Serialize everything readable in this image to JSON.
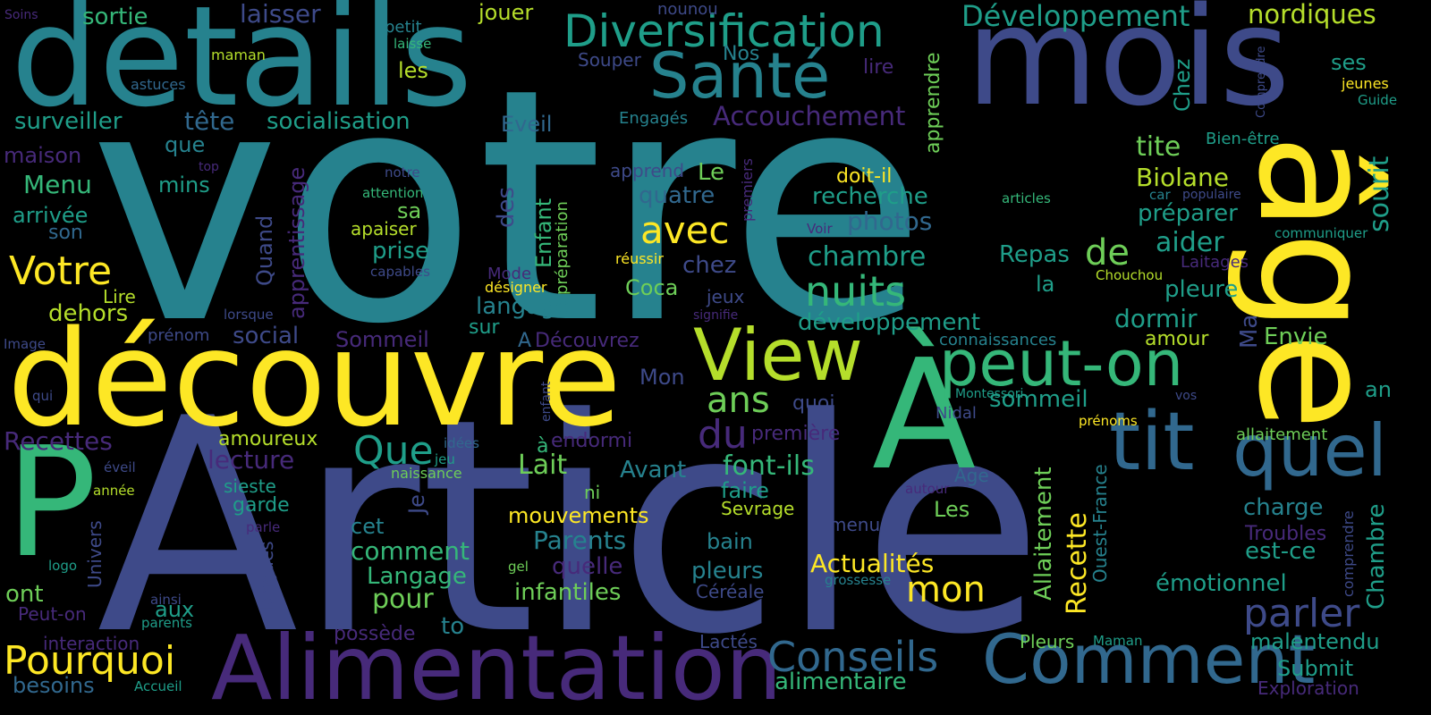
{
  "palette": {
    "background": "#000000",
    "dark_purple": "#472a7a",
    "indigo": "#3e4a89",
    "blue": "#31688e",
    "teal": "#26828e",
    "green_teal": "#1f9e89",
    "green": "#35b779",
    "light_green": "#6ece58",
    "lime": "#b5de2b",
    "yellow": "#fde725"
  },
  "words": [
    {
      "text": "votre",
      "c": "teal"
    },
    {
      "text": "Article",
      "c": "indigo"
    },
    {
      "text": "details",
      "c": "teal"
    },
    {
      "text": "mois",
      "c": "indigo"
    },
    {
      "text": "âge",
      "c": "yellow"
    },
    {
      "text": "découvre",
      "c": "yellow"
    },
    {
      "text": "P",
      "c": "green"
    },
    {
      "text": "À",
      "c": "green"
    },
    {
      "text": "View",
      "c": "lime"
    },
    {
      "text": "peut-on",
      "c": "green"
    },
    {
      "text": "Alimentation",
      "c": "dark_purple"
    },
    {
      "text": "Comment",
      "c": "blue"
    },
    {
      "text": "tit",
      "c": "blue"
    },
    {
      "text": "quel",
      "c": "blue"
    },
    {
      "text": "Santé",
      "c": "teal"
    },
    {
      "text": "Diversification",
      "c": "green_teal"
    },
    {
      "text": "Développement",
      "c": "green_teal"
    },
    {
      "text": "nordiques",
      "c": "lime"
    },
    {
      "text": "Conseils",
      "c": "blue"
    },
    {
      "text": "Pourquoi",
      "c": "yellow"
    },
    {
      "text": "nuits",
      "c": "green"
    },
    {
      "text": "avec",
      "c": "yellow"
    },
    {
      "text": "Votre",
      "c": "yellow"
    },
    {
      "text": "parler",
      "c": "indigo"
    },
    {
      "text": "du",
      "c": "dark_purple"
    },
    {
      "text": "Que",
      "c": "green_teal"
    },
    {
      "text": "ans",
      "c": "light_green"
    },
    {
      "text": "mon",
      "c": "yellow"
    },
    {
      "text": "de",
      "c": "light_green"
    },
    {
      "text": "Accouchement",
      "c": "dark_purple"
    },
    {
      "text": "Actualités",
      "c": "yellow"
    },
    {
      "text": "font-ils",
      "c": "green"
    },
    {
      "text": "Lait",
      "c": "light_green"
    },
    {
      "text": "Recettes",
      "c": "dark_purple"
    },
    {
      "text": "laisser",
      "c": "indigo"
    },
    {
      "text": "sortie",
      "c": "green"
    },
    {
      "text": "jouer",
      "c": "lime"
    },
    {
      "text": "nounou",
      "c": "indigo"
    },
    {
      "text": "Soins",
      "c": "dark_purple"
    },
    {
      "text": "petit",
      "c": "teal"
    },
    {
      "text": "laisse",
      "c": "green"
    },
    {
      "text": "les",
      "c": "lime"
    },
    {
      "text": "maman",
      "c": "lime"
    },
    {
      "text": "Souper",
      "c": "indigo"
    },
    {
      "text": "Nos",
      "c": "teal"
    },
    {
      "text": "lire",
      "c": "dark_purple"
    },
    {
      "text": "astuces",
      "c": "blue"
    },
    {
      "text": "surveiller",
      "c": "green_teal"
    },
    {
      "text": "tête",
      "c": "blue"
    },
    {
      "text": "socialisation",
      "c": "green_teal"
    },
    {
      "text": "Eveil",
      "c": "blue"
    },
    {
      "text": "Engagés",
      "c": "teal"
    },
    {
      "text": "Chez",
      "c": "green_teal"
    },
    {
      "text": "ses",
      "c": "green_teal"
    },
    {
      "text": "jeunes",
      "c": "yellow"
    },
    {
      "text": "Guide",
      "c": "green_teal"
    },
    {
      "text": "Comprendre",
      "c": "indigo"
    },
    {
      "text": "apprendre",
      "c": "light_green"
    },
    {
      "text": "que",
      "c": "teal"
    },
    {
      "text": "maison",
      "c": "dark_purple"
    },
    {
      "text": "top",
      "c": "dark_purple"
    },
    {
      "text": "mins",
      "c": "green_teal"
    },
    {
      "text": "Menu",
      "c": "green"
    },
    {
      "text": "arrivée",
      "c": "green_teal"
    },
    {
      "text": "son",
      "c": "blue"
    },
    {
      "text": "notre",
      "c": "indigo"
    },
    {
      "text": "attention",
      "c": "green"
    },
    {
      "text": "sa",
      "c": "light_green"
    },
    {
      "text": "apaiser",
      "c": "lime"
    },
    {
      "text": "tite",
      "c": "light_green"
    },
    {
      "text": "Biolane",
      "c": "lime"
    },
    {
      "text": "sourit",
      "c": "green_teal"
    },
    {
      "text": "Bien-être",
      "c": "green_teal"
    },
    {
      "text": "car",
      "c": "teal"
    },
    {
      "text": "populaire",
      "c": "indigo"
    },
    {
      "text": "articles",
      "c": "green"
    },
    {
      "text": "doit-il",
      "c": "yellow"
    },
    {
      "text": "recherche",
      "c": "green_teal"
    },
    {
      "text": "Le",
      "c": "light_green"
    },
    {
      "text": "quatre",
      "c": "blue"
    },
    {
      "text": "apprend",
      "c": "indigo"
    },
    {
      "text": "premiers",
      "c": "dark_purple"
    },
    {
      "text": "photos",
      "c": "blue"
    },
    {
      "text": "préparer",
      "c": "green_teal"
    },
    {
      "text": "communiquer",
      "c": "green_teal"
    },
    {
      "text": "aider",
      "c": "green_teal"
    },
    {
      "text": "Laitages",
      "c": "dark_purple"
    },
    {
      "text": "Chouchou",
      "c": "lime"
    },
    {
      "text": "pleure",
      "c": "green_teal"
    },
    {
      "text": "Ma",
      "c": "indigo"
    },
    {
      "text": "Envie",
      "c": "light_green"
    },
    {
      "text": "amour",
      "c": "lime"
    },
    {
      "text": "dormir",
      "c": "green_teal"
    },
    {
      "text": "Repas",
      "c": "green_teal"
    },
    {
      "text": "la",
      "c": "green_teal"
    },
    {
      "text": "chambre",
      "c": "green_teal"
    },
    {
      "text": "Voir",
      "c": "dark_purple"
    },
    {
      "text": "réussir",
      "c": "yellow"
    },
    {
      "text": "chez",
      "c": "indigo"
    },
    {
      "text": "Coca",
      "c": "light_green"
    },
    {
      "text": "jeux",
      "c": "indigo"
    },
    {
      "text": "signifie",
      "c": "dark_purple"
    },
    {
      "text": "développement",
      "c": "green_teal"
    },
    {
      "text": "connaissances",
      "c": "teal"
    },
    {
      "text": "Sommeil",
      "c": "dark_purple"
    },
    {
      "text": "social",
      "c": "indigo"
    },
    {
      "text": "prise",
      "c": "green_teal"
    },
    {
      "text": "Quand",
      "c": "indigo"
    },
    {
      "text": "apprentissage",
      "c": "dark_purple"
    },
    {
      "text": "préparation",
      "c": "light_green"
    },
    {
      "text": "Enfant",
      "c": "green"
    },
    {
      "text": "des",
      "c": "indigo"
    },
    {
      "text": "Mode",
      "c": "dark_purple"
    },
    {
      "text": "désigner",
      "c": "yellow"
    },
    {
      "text": "langage",
      "c": "teal"
    },
    {
      "text": "sur",
      "c": "green_teal"
    },
    {
      "text": "A",
      "c": "blue"
    },
    {
      "text": "Découvrez",
      "c": "dark_purple"
    },
    {
      "text": "Mon",
      "c": "indigo"
    },
    {
      "text": "quoi",
      "c": "indigo"
    },
    {
      "text": "sommeil",
      "c": "green_teal"
    },
    {
      "text": "Montessori",
      "c": "green_teal"
    },
    {
      "text": "vos",
      "c": "indigo"
    },
    {
      "text": "an",
      "c": "green_teal"
    },
    {
      "text": "prénoms",
      "c": "yellow"
    },
    {
      "text": "allaitement",
      "c": "light_green"
    },
    {
      "text": "endormi",
      "c": "dark_purple"
    },
    {
      "text": "première",
      "c": "dark_purple"
    },
    {
      "text": "Nidal",
      "c": "indigo"
    },
    {
      "text": "Allaitement",
      "c": "light_green"
    },
    {
      "text": "Recette",
      "c": "yellow"
    },
    {
      "text": "Ouest-France",
      "c": "teal"
    },
    {
      "text": "Chambre",
      "c": "green_teal"
    },
    {
      "text": "charge",
      "c": "teal"
    },
    {
      "text": "Troubles",
      "c": "dark_purple"
    },
    {
      "text": "comprendre",
      "c": "indigo"
    },
    {
      "text": "est-ce",
      "c": "green_teal"
    },
    {
      "text": "émotionnel",
      "c": "green_teal"
    },
    {
      "text": "malentendu",
      "c": "green_teal"
    },
    {
      "text": "Submit",
      "c": "green_teal"
    },
    {
      "text": "Exploration",
      "c": "dark_purple"
    },
    {
      "text": "Maman",
      "c": "green_teal"
    },
    {
      "text": "Pleurs",
      "c": "light_green"
    },
    {
      "text": "Age",
      "c": "blue"
    },
    {
      "text": "autour",
      "c": "dark_purple"
    },
    {
      "text": "Les",
      "c": "light_green"
    },
    {
      "text": "Sevrage",
      "c": "lime"
    },
    {
      "text": "menu",
      "c": "indigo"
    },
    {
      "text": "grossesse",
      "c": "teal"
    },
    {
      "text": "Céréale",
      "c": "indigo"
    },
    {
      "text": "Lactés",
      "c": "indigo"
    },
    {
      "text": "alimentaire",
      "c": "green"
    },
    {
      "text": "faire",
      "c": "green_teal"
    },
    {
      "text": "bain",
      "c": "teal"
    },
    {
      "text": "pleurs",
      "c": "teal"
    },
    {
      "text": "Avant",
      "c": "teal"
    },
    {
      "text": "à",
      "c": "green"
    },
    {
      "text": "idées",
      "c": "blue"
    },
    {
      "text": "jeu",
      "c": "green_teal"
    },
    {
      "text": "naissance",
      "c": "light_green"
    },
    {
      "text": "ni",
      "c": "light_green"
    },
    {
      "text": "gel",
      "c": "light_green"
    },
    {
      "text": "mouvements",
      "c": "yellow"
    },
    {
      "text": "Parents",
      "c": "teal"
    },
    {
      "text": "quelle",
      "c": "dark_purple"
    },
    {
      "text": "infantiles",
      "c": "light_green"
    },
    {
      "text": "Langage",
      "c": "green"
    },
    {
      "text": "pour",
      "c": "light_green"
    },
    {
      "text": "comment",
      "c": "green"
    },
    {
      "text": "cet",
      "c": "teal"
    },
    {
      "text": "Je",
      "c": "indigo"
    },
    {
      "text": "possède",
      "c": "dark_purple"
    },
    {
      "text": "to",
      "c": "teal"
    },
    {
      "text": "amoureux",
      "c": "lime"
    },
    {
      "text": "lecture",
      "c": "dark_purple"
    },
    {
      "text": "sieste",
      "c": "green_teal"
    },
    {
      "text": "garde",
      "c": "green_teal"
    },
    {
      "text": "aux",
      "c": "green_teal"
    },
    {
      "text": "interaction",
      "c": "dark_purple"
    },
    {
      "text": "parents",
      "c": "green_teal"
    },
    {
      "text": "ainsi",
      "c": "indigo"
    },
    {
      "text": "parle",
      "c": "dark_purple"
    },
    {
      "text": "langues",
      "c": "indigo"
    },
    {
      "text": "Univers",
      "c": "indigo"
    },
    {
      "text": "logo",
      "c": "green_teal"
    },
    {
      "text": "année",
      "c": "lime"
    },
    {
      "text": "éveil",
      "c": "indigo"
    },
    {
      "text": "qui",
      "c": "indigo"
    },
    {
      "text": "Image",
      "c": "indigo"
    },
    {
      "text": "prénom",
      "c": "indigo"
    },
    {
      "text": "lorsque",
      "c": "indigo"
    },
    {
      "text": "Lire",
      "c": "lime"
    },
    {
      "text": "dehors",
      "c": "lime"
    },
    {
      "text": "capables",
      "c": "indigo"
    },
    {
      "text": "enfant",
      "c": "indigo"
    },
    {
      "text": "ont",
      "c": "light_green"
    },
    {
      "text": "Peut-on",
      "c": "dark_purple"
    },
    {
      "text": "besoins",
      "c": "blue"
    },
    {
      "text": "Accueil",
      "c": "green_teal"
    }
  ]
}
